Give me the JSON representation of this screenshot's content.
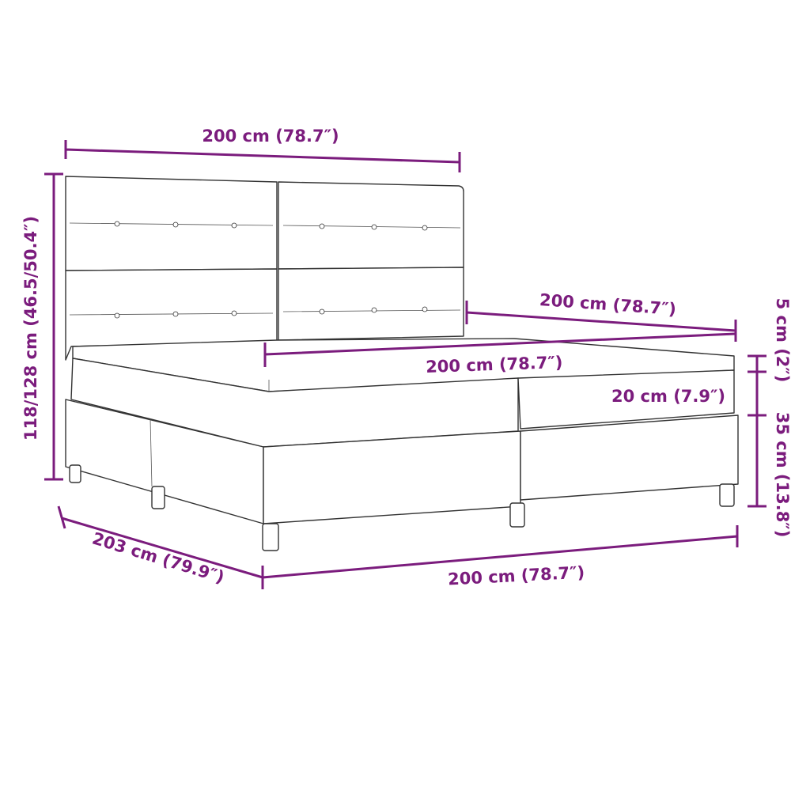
{
  "accent_color": "#7b1c7d",
  "dimensions": {
    "headboard_width": "200 cm (78.7″)",
    "total_height": "118/128 cm (46.5/50.4″)",
    "headboard_depth_width": "200 cm (78.7″)",
    "mattress_width": "200 cm (78.7″)",
    "topper_height": "5 cm (2″)",
    "mattress_height": "20 cm (7.9″)",
    "base_height": "35 cm (13.8″)",
    "length": "203 cm (79.9″)",
    "base_width": "200 cm (78.7″)"
  }
}
